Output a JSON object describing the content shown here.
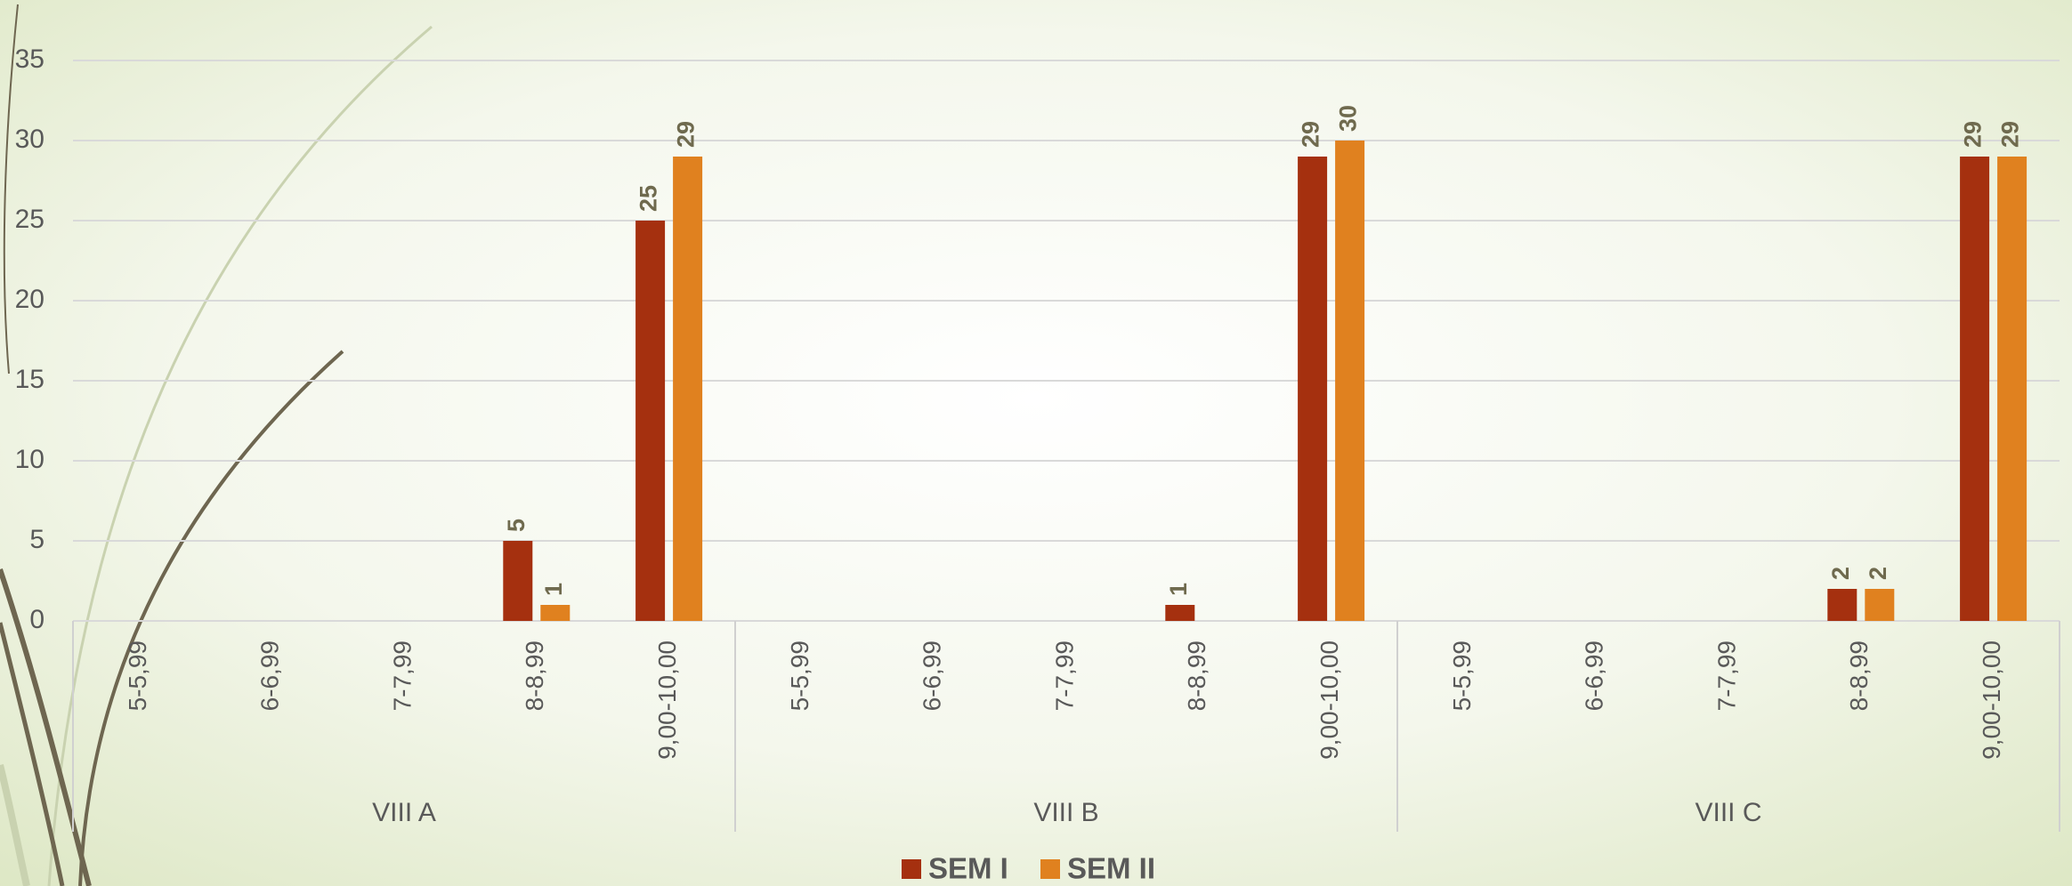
{
  "chart_data": {
    "type": "bar",
    "groups": [
      "VIII A",
      "VIII B",
      "VIII C"
    ],
    "categories": [
      "5-5,99",
      "6-6,99",
      "7-7,99",
      "8-8,99",
      "9,00-10,00",
      "5-5,99",
      "6-6,99",
      "7-7,99",
      "8-8,99",
      "9,00-10,00",
      "5-5,99",
      "6-6,99",
      "7-7,99",
      "8-8,99",
      "9,00-10,00"
    ],
    "series": [
      {
        "name": "SEM I",
        "color": "#a5300f",
        "values": [
          null,
          null,
          null,
          5,
          25,
          null,
          null,
          null,
          1,
          29,
          null,
          null,
          null,
          2,
          29
        ]
      },
      {
        "name": "SEM II",
        "color": "#e0811f",
        "values": [
          null,
          null,
          null,
          1,
          29,
          null,
          null,
          null,
          null,
          30,
          null,
          null,
          null,
          2,
          29
        ]
      }
    ],
    "ylim": [
      0,
      35
    ],
    "yticks": [
      0,
      5,
      10,
      15,
      20,
      25,
      30,
      35
    ],
    "grid": true,
    "legend": "bottom"
  }
}
